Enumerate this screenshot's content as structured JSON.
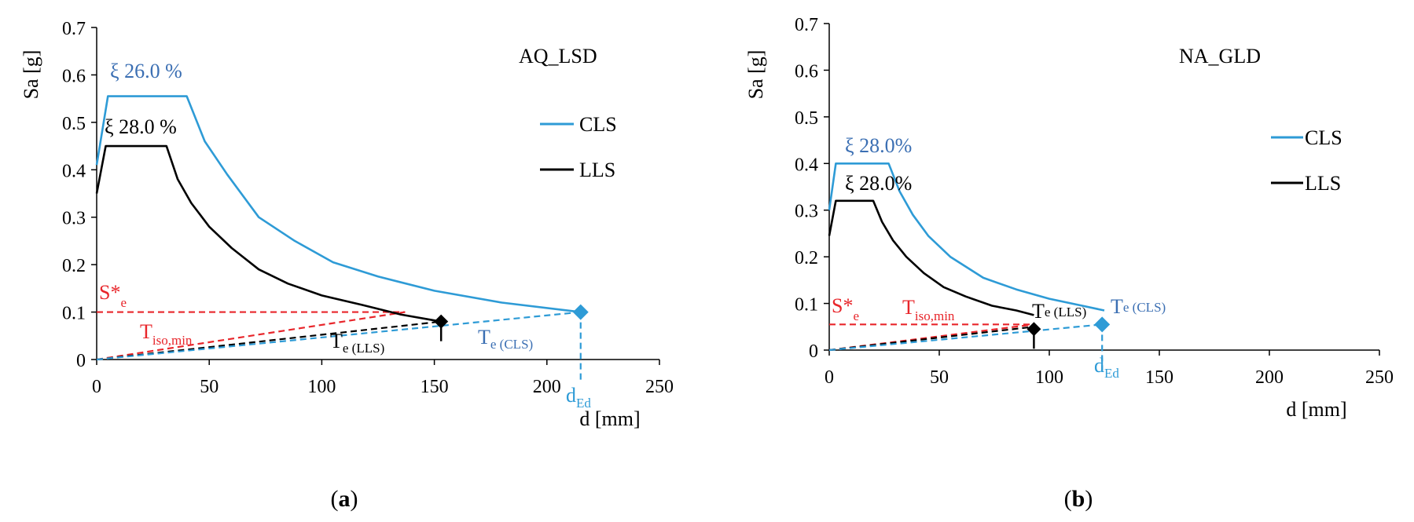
{
  "colors": {
    "cls": "#2e9bd6",
    "llc": "#000000",
    "red": "#e8262b",
    "xi_cls": "#3b6fb3"
  },
  "panels": [
    {
      "caption_open": "(",
      "caption_letter": "a",
      "caption_close": ")",
      "ylabel": "Sa [g]",
      "xlabel": "d [mm]",
      "title": "AQ_LSD",
      "legend": [
        "CLS",
        "LLS"
      ],
      "xi_cls": "ξ 26.0 %",
      "xi_lls": "ξ 28.0 %",
      "se_main": "S*",
      "se_sub": "e",
      "tiso_main": "T",
      "tiso_sub": "iso,min",
      "te_lls_main": "T",
      "te_lls_sub": "e (LLS)",
      "te_cls_main": "T",
      "te_cls_sub": "e (CLS)",
      "ded_main": "d",
      "ded_sub": "Ed"
    },
    {
      "caption_open": "(",
      "caption_letter": "b",
      "caption_close": ")",
      "ylabel": "Sa [g]",
      "xlabel": "d [mm]",
      "title": "NA_GLD",
      "legend": [
        "CLS",
        "LLS"
      ],
      "xi_cls": "ξ 28.0%",
      "xi_lls": "ξ 28.0%",
      "se_main": "S*",
      "se_sub": "e",
      "tiso_main": "T",
      "tiso_sub": "iso,min",
      "te_lls_main": "T",
      "te_lls_sub": "e (LLS)",
      "te_cls_main": "T",
      "te_cls_sub": "e (CLS)",
      "ded_main": "d",
      "ded_sub": "Ed"
    }
  ],
  "chart_data": [
    {
      "type": "line",
      "title": "AQ_LSD",
      "xlabel": "d [mm]",
      "ylabel": "Sa [g]",
      "xlim": [
        0,
        250
      ],
      "ylim": [
        0,
        0.7
      ],
      "xticks": [
        0,
        50,
        100,
        150,
        200,
        250
      ],
      "yticks": [
        0,
        0.1,
        0.2,
        0.3,
        0.4,
        0.5,
        0.6,
        0.7
      ],
      "grid": false,
      "legend_position": "right",
      "series": [
        {
          "name": "CLS",
          "x": [
            0,
            5,
            40,
            48,
            58,
            72,
            88,
            105,
            125,
            150,
            180,
            215
          ],
          "y": [
            0.41,
            0.555,
            0.555,
            0.46,
            0.39,
            0.3,
            0.25,
            0.205,
            0.175,
            0.145,
            0.12,
            0.1
          ]
        },
        {
          "name": "LLS",
          "x": [
            0,
            4,
            31,
            36,
            42,
            50,
            60,
            72,
            85,
            100,
            118,
            135,
            153
          ],
          "y": [
            0.35,
            0.45,
            0.45,
            0.38,
            0.33,
            0.28,
            0.235,
            0.19,
            0.16,
            0.135,
            0.115,
            0.095,
            0.08
          ]
        }
      ],
      "reference_lines": [
        {
          "name": "S*e",
          "x": [
            0,
            137
          ],
          "y": [
            0.1,
            0.1
          ]
        },
        {
          "name": "Tiso,min",
          "x": [
            0,
            137
          ],
          "y": [
            0,
            0.1
          ]
        },
        {
          "name": "Te (LLS)",
          "x": [
            0,
            153
          ],
          "y": [
            0,
            0.08
          ]
        },
        {
          "name": "Te (CLS)",
          "x": [
            0,
            215
          ],
          "y": [
            0,
            0.1
          ]
        }
      ],
      "points": [
        {
          "name": "LLS point",
          "x": 153,
          "y": 0.08
        },
        {
          "name": "CLS point",
          "x": 215,
          "y": 0.1
        }
      ],
      "d_ed": 215
    },
    {
      "type": "line",
      "title": "NA_GLD",
      "xlabel": "d [mm]",
      "ylabel": "Sa [g]",
      "xlim": [
        0,
        250
      ],
      "ylim": [
        0,
        0.7
      ],
      "xticks": [
        0,
        50,
        100,
        150,
        200,
        250
      ],
      "yticks": [
        0,
        0.1,
        0.2,
        0.3,
        0.4,
        0.5,
        0.6,
        0.7
      ],
      "grid": false,
      "legend_position": "right",
      "series": [
        {
          "name": "CLS",
          "x": [
            0,
            3,
            27,
            32,
            38,
            45,
            55,
            70,
            85,
            100,
            115,
            125
          ],
          "y": [
            0.3,
            0.4,
            0.4,
            0.34,
            0.29,
            0.245,
            0.2,
            0.155,
            0.13,
            0.11,
            0.095,
            0.085
          ]
        },
        {
          "name": "LLS",
          "x": [
            0,
            3,
            20,
            24,
            29,
            35,
            43,
            52,
            62,
            74,
            85,
            93
          ],
          "y": [
            0.245,
            0.32,
            0.32,
            0.275,
            0.235,
            0.2,
            0.165,
            0.135,
            0.115,
            0.095,
            0.085,
            0.075
          ]
        }
      ],
      "reference_lines": [
        {
          "name": "S*e",
          "x": [
            0,
            93
          ],
          "y": [
            0.055,
            0.055
          ]
        },
        {
          "name": "Tiso,min",
          "x": [
            0,
            93
          ],
          "y": [
            0,
            0.055
          ]
        },
        {
          "name": "Te (LLS)",
          "x": [
            0,
            93
          ],
          "y": [
            0,
            0.05
          ]
        },
        {
          "name": "Te (CLS)",
          "x": [
            0,
            124
          ],
          "y": [
            0,
            0.055
          ]
        }
      ],
      "points": [
        {
          "name": "LLS point",
          "x": 93,
          "y": 0.045
        },
        {
          "name": "CLS point",
          "x": 124,
          "y": 0.055
        }
      ],
      "d_ed": 124
    }
  ]
}
